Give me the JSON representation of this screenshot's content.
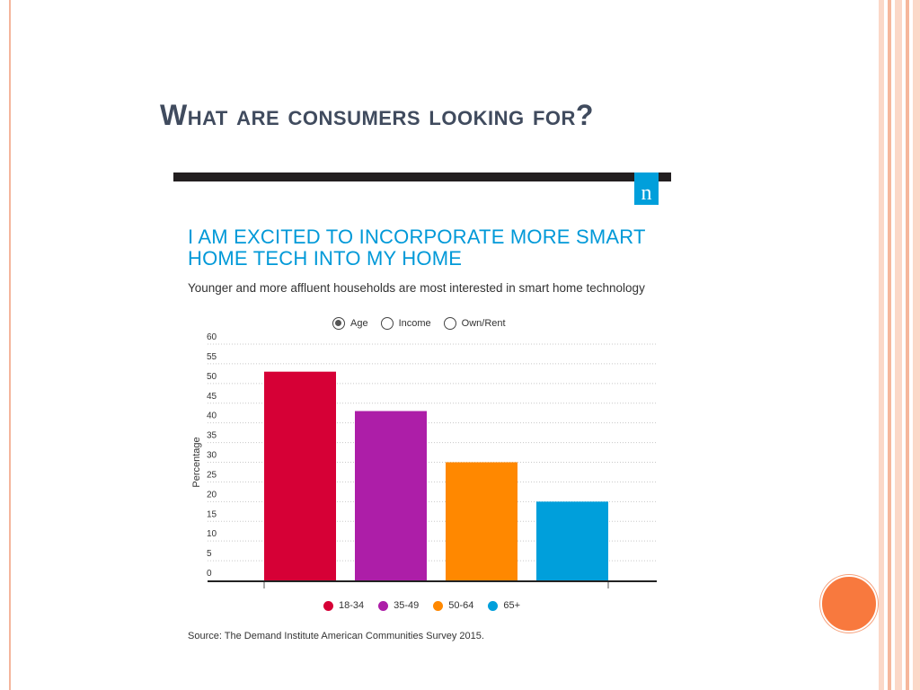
{
  "slide": {
    "title": "What are consumers looking for?",
    "logo_text": "n"
  },
  "chart_header": {
    "title_line1": "I AM EXCITED TO INCORPORATE MORE SMART",
    "title_line2": "HOME TECH INTO MY HOME",
    "subtitle": "Younger and more affluent households are most interested in smart home technology"
  },
  "toggle": {
    "options": [
      {
        "label": "Age",
        "selected": true
      },
      {
        "label": "Income",
        "selected": false
      },
      {
        "label": "Own/Rent",
        "selected": false
      }
    ]
  },
  "chart_data": {
    "type": "bar",
    "title": "I AM EXCITED TO INCORPORATE MORE SMART HOME TECH INTO MY HOME",
    "subtitle": "Younger and more affluent households are most interested in smart home technology",
    "xlabel": "",
    "ylabel": "Percentage",
    "ylim": [
      0,
      60
    ],
    "yticks": [
      0,
      5,
      10,
      15,
      20,
      25,
      30,
      35,
      40,
      45,
      50,
      55,
      60
    ],
    "grid": true,
    "legend_position": "bottom",
    "categories": [
      "18-34",
      "35-49",
      "50-64",
      "65+"
    ],
    "values": [
      53,
      43,
      30,
      20
    ],
    "colors": [
      "#d60036",
      "#ad1ea8",
      "#ff8800",
      "#009fdb"
    ]
  },
  "source": "Source: The Demand Institute American Communities Survey 2015.",
  "colors": {
    "title": "#404b5e",
    "chart_title": "#0099d8",
    "accent_orange": "#f8793e",
    "frame_stripe": "#f4b59c"
  }
}
